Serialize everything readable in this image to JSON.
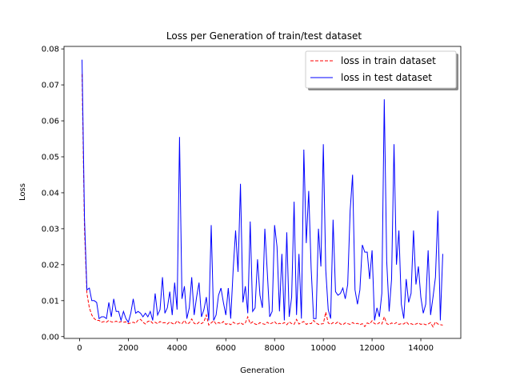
{
  "chart_data": {
    "type": "line",
    "title": "Loss per Generation of train/test dataset",
    "xlabel": "Generation",
    "ylabel": "Loss",
    "x": [
      100,
      200,
      300,
      400,
      500,
      600,
      700,
      800,
      900,
      1000,
      1100,
      1200,
      1300,
      1400,
      1500,
      1600,
      1700,
      1800,
      1900,
      2000,
      2100,
      2200,
      2300,
      2400,
      2500,
      2600,
      2700,
      2800,
      2900,
      3000,
      3100,
      3200,
      3300,
      3400,
      3500,
      3600,
      3700,
      3800,
      3900,
      4000,
      4100,
      4200,
      4300,
      4400,
      4500,
      4600,
      4700,
      4800,
      4900,
      5000,
      5100,
      5200,
      5300,
      5400,
      5500,
      5600,
      5700,
      5800,
      5900,
      6000,
      6100,
      6200,
      6300,
      6400,
      6500,
      6600,
      6700,
      6800,
      6900,
      7000,
      7100,
      7200,
      7300,
      7400,
      7500,
      7600,
      7700,
      7800,
      7900,
      8000,
      8100,
      8200,
      8300,
      8400,
      8500,
      8600,
      8700,
      8800,
      8900,
      9000,
      9100,
      9200,
      9300,
      9400,
      9500,
      9600,
      9700,
      9800,
      9900,
      10000,
      10100,
      10200,
      10300,
      10400,
      10500,
      10600,
      10700,
      10800,
      10900,
      11000,
      11100,
      11200,
      11300,
      11400,
      11500,
      11600,
      11700,
      11800,
      11900,
      12000,
      12100,
      12200,
      12300,
      12400,
      12500,
      12600,
      12700,
      12800,
      12900,
      13000,
      13100,
      13200,
      13300,
      13400,
      13500,
      13600,
      13700,
      13800,
      13900,
      14000,
      14100,
      14200,
      14300,
      14400,
      14500,
      14600,
      14700,
      14800,
      14900
    ],
    "series": [
      {
        "name": "loss in train dataset",
        "color": "#ff0000",
        "dash": true,
        "values": [
          0.073,
          0.03,
          0.012,
          0.008,
          0.006,
          0.005,
          0.0045,
          0.0045,
          0.004,
          0.0042,
          0.004,
          0.0045,
          0.0041,
          0.004,
          0.0043,
          0.0039,
          0.0042,
          0.004,
          0.0041,
          0.0036,
          0.0038,
          0.004,
          0.0037,
          0.0046,
          0.0048,
          0.004,
          0.0035,
          0.0042,
          0.0044,
          0.0037,
          0.004,
          0.0036,
          0.0042,
          0.0038,
          0.0039,
          0.0035,
          0.0041,
          0.0037,
          0.0034,
          0.0044,
          0.0038,
          0.0036,
          0.0045,
          0.0035,
          0.0038,
          0.0049,
          0.0037,
          0.0034,
          0.004,
          0.0036,
          0.0041,
          0.006,
          0.0032,
          0.0038,
          0.0044,
          0.0035,
          0.0039,
          0.0036,
          0.0042,
          0.0034,
          0.0037,
          0.0033,
          0.004,
          0.0036,
          0.0035,
          0.0039,
          0.0034,
          0.0038,
          0.0055,
          0.0036,
          0.0041,
          0.0035,
          0.0033,
          0.0039,
          0.0036,
          0.0034,
          0.004,
          0.0035,
          0.0038,
          0.0042,
          0.0034,
          0.0037,
          0.0035,
          0.0039,
          0.0033,
          0.0041,
          0.0036,
          0.0034,
          0.0048,
          0.0035,
          0.0039,
          0.0042,
          0.0034,
          0.0037,
          0.0036,
          0.0045,
          0.0038,
          0.0034,
          0.0035,
          0.0036,
          0.0068,
          0.0038,
          0.0034,
          0.0039,
          0.0036,
          0.0041,
          0.0035,
          0.0033,
          0.0038,
          0.0036,
          0.0034,
          0.0039,
          0.0035,
          0.0037,
          0.0033,
          0.0036,
          0.0028,
          0.0038,
          0.0035,
          0.0044,
          0.0036,
          0.0034,
          0.0039,
          0.0035,
          0.0055,
          0.0036,
          0.0033,
          0.0038,
          0.0035,
          0.0039,
          0.0034,
          0.0036,
          0.0035,
          0.0041,
          0.0034,
          0.0036,
          0.0033,
          0.0035,
          0.0038,
          0.0034,
          0.0036,
          0.0033,
          0.0035,
          0.0039,
          0.0027,
          0.0041,
          0.0035,
          0.0033,
          0.0032
        ]
      },
      {
        "name": "loss in test dataset",
        "color": "#0000ff",
        "dash": false,
        "values": [
          0.077,
          0.033,
          0.013,
          0.0135,
          0.01,
          0.01,
          0.0095,
          0.005,
          0.0055,
          0.0055,
          0.005,
          0.0095,
          0.0055,
          0.0105,
          0.007,
          0.007,
          0.0045,
          0.007,
          0.005,
          0.004,
          0.0065,
          0.0105,
          0.0065,
          0.007,
          0.0065,
          0.0055,
          0.0065,
          0.0055,
          0.007,
          0.0045,
          0.012,
          0.006,
          0.0075,
          0.0165,
          0.0065,
          0.008,
          0.0125,
          0.006,
          0.015,
          0.0075,
          0.0555,
          0.0105,
          0.014,
          0.005,
          0.008,
          0.0165,
          0.006,
          0.011,
          0.015,
          0.0055,
          0.0075,
          0.011,
          0.0045,
          0.031,
          0.0045,
          0.006,
          0.0115,
          0.0135,
          0.0095,
          0.006,
          0.0135,
          0.005,
          0.0185,
          0.0295,
          0.018,
          0.0425,
          0.0095,
          0.014,
          0.0065,
          0.032,
          0.007,
          0.008,
          0.0215,
          0.0115,
          0.008,
          0.03,
          0.018,
          0.0055,
          0.007,
          0.031,
          0.025,
          0.007,
          0.023,
          0.0045,
          0.029,
          0.0055,
          0.011,
          0.0375,
          0.006,
          0.023,
          0.005,
          0.052,
          0.026,
          0.0405,
          0.019,
          0.005,
          0.005,
          0.03,
          0.0195,
          0.0535,
          0.0185,
          0.0075,
          0.005,
          0.0325,
          0.0125,
          0.0115,
          0.012,
          0.0135,
          0.0105,
          0.0145,
          0.035,
          0.045,
          0.013,
          0.009,
          0.013,
          0.0255,
          0.0235,
          0.0235,
          0.016,
          0.024,
          0.0045,
          0.008,
          0.0055,
          0.012,
          0.066,
          0.021,
          0.007,
          0.016,
          0.0535,
          0.02,
          0.0295,
          0.009,
          0.005,
          0.016,
          0.0095,
          0.012,
          0.0295,
          0.0145,
          0.0195,
          0.011,
          0.0065,
          0.009,
          0.024,
          0.006,
          0.011,
          0.0165,
          0.035,
          0.0045,
          0.023
        ]
      }
    ],
    "xlim": [
      -640,
      15640
    ],
    "xticks": [
      0,
      2000,
      4000,
      6000,
      8000,
      10000,
      12000,
      14000
    ],
    "ylim": [
      -0.0005,
      0.0807
    ],
    "yticks": [
      {
        "value": 0,
        "label": "0.00"
      },
      {
        "value": 0.01,
        "label": "0.01"
      },
      {
        "value": 0.02,
        "label": "0.02"
      },
      {
        "value": 0.03,
        "label": "0.03"
      },
      {
        "value": 0.04,
        "label": "0.04"
      },
      {
        "value": 0.05,
        "label": "0.05"
      },
      {
        "value": 0.06,
        "label": "0.06"
      },
      {
        "value": 0.07,
        "label": "0.07"
      },
      {
        "value": 0.08,
        "label": "0.08"
      }
    ],
    "legend": "upper right"
  }
}
